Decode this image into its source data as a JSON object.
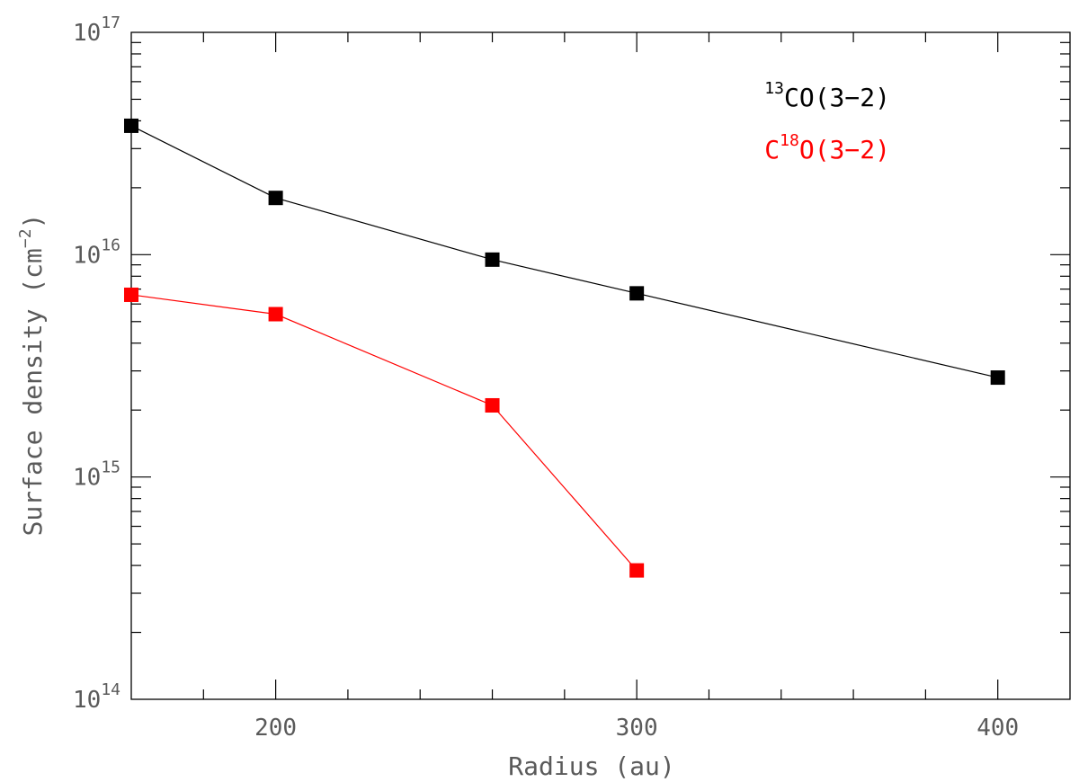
{
  "chart_data": {
    "type": "line",
    "title": "",
    "xlabel": "Radius (au)",
    "ylabel": {
      "prefix": "Surface density (cm",
      "sup": "−2",
      "suffix": ")"
    },
    "xlim": [
      160,
      420
    ],
    "ylim": [
      100000000000000.0,
      1e+17
    ],
    "yscale": "log",
    "x_major_ticks": [
      200,
      300,
      400
    ],
    "x_tick_labels": [
      "200",
      "300",
      "400"
    ],
    "y_major_ticks": [
      100000000000000.0,
      1000000000000000.0,
      1e+16,
      1e+17
    ],
    "y_tick_labels": [
      {
        "base": "10",
        "exp": "14"
      },
      {
        "base": "10",
        "exp": "15"
      },
      {
        "base": "10",
        "exp": "16"
      },
      {
        "base": "10",
        "exp": "17"
      }
    ],
    "grid": false,
    "legend_position": "top-right",
    "series": [
      {
        "name": "13CO(3−2)",
        "label_sup": "13",
        "label_main": "CO(3−2)",
        "label_pre": "",
        "color": "#000000",
        "marker": "square",
        "x": [
          160,
          200,
          260,
          300,
          400
        ],
        "y": [
          3.8e+16,
          1.8e+16,
          9500000000000000.0,
          6700000000000000.0,
          2800000000000000.0
        ]
      },
      {
        "name": "C18O(3−2)",
        "label_pre": "C",
        "label_sup": "18",
        "label_main": "O(3−2)",
        "color": "#ff0000",
        "marker": "square",
        "x": [
          160,
          200,
          260,
          300
        ],
        "y": [
          6600000000000000.0,
          5400000000000000.0,
          2100000000000000.0,
          380000000000000.0
        ]
      }
    ]
  }
}
